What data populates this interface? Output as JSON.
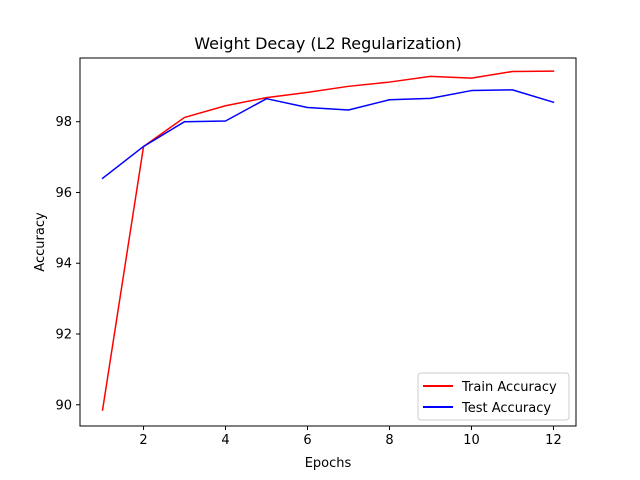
{
  "chart_data": {
    "type": "line",
    "title": "Weight Decay (L2 Regularization)",
    "xlabel": "Epochs",
    "ylabel": "Accuracy",
    "x": [
      1,
      2,
      3,
      4,
      5,
      6,
      7,
      8,
      9,
      10,
      11,
      12
    ],
    "xlim": [
      0.45,
      12.55
    ],
    "ylim": [
      89.4,
      99.8
    ],
    "xticks": [
      2,
      4,
      6,
      8,
      10,
      12
    ],
    "yticks": [
      90,
      92,
      94,
      96,
      98
    ],
    "grid": false,
    "legend_position": "lower-right",
    "series": [
      {
        "name": "Train Accuracy",
        "color": "#ff0000",
        "values": [
          89.85,
          97.3,
          98.12,
          98.45,
          98.68,
          98.83,
          99.0,
          99.12,
          99.28,
          99.23,
          99.42,
          99.43
        ]
      },
      {
        "name": "Test Accuracy",
        "color": "#0000ff",
        "values": [
          96.4,
          97.3,
          98.0,
          98.02,
          98.65,
          98.4,
          98.33,
          98.62,
          98.66,
          98.88,
          98.9,
          98.55
        ]
      }
    ]
  }
}
